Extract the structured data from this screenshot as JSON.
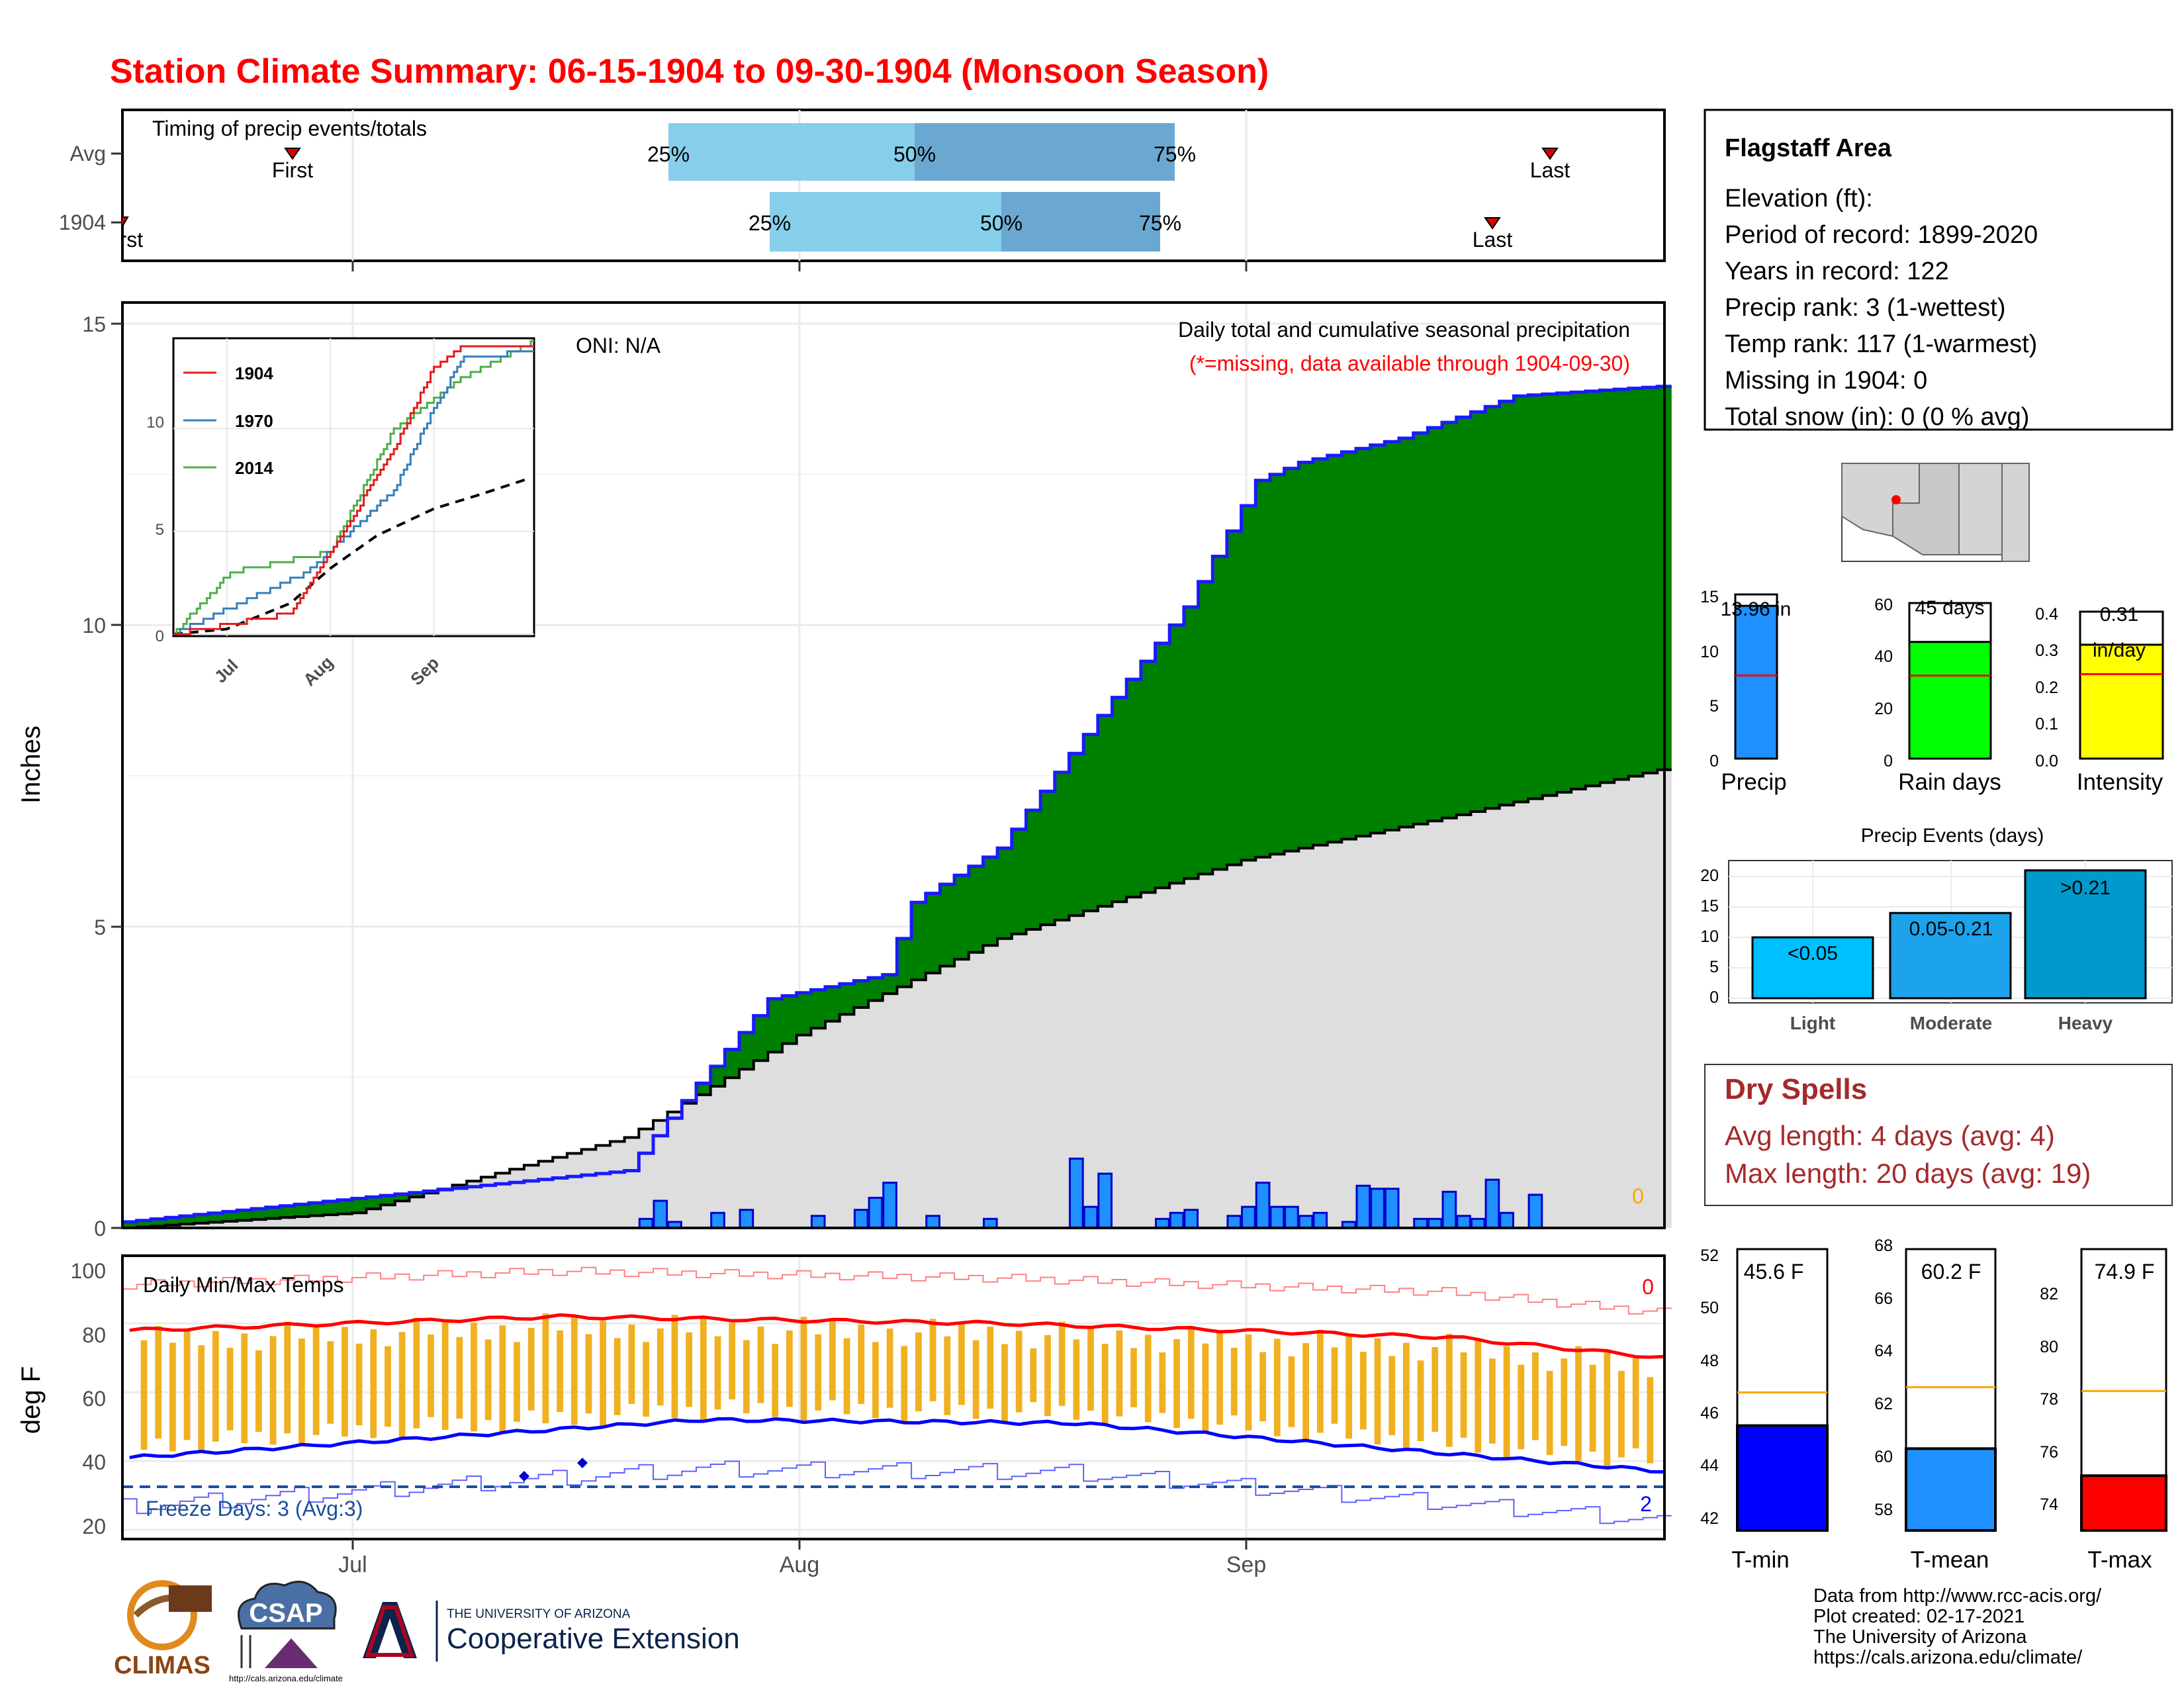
{
  "title": "Station Climate Summary: 06-15-1904 to 09-30-1904 (Monsoon Season)",
  "colors": {
    "title": "#ff0000",
    "accent_blue": "#1a1aff",
    "green": "#008000",
    "brown": "#8b5a00",
    "gray_fill": "#dedede",
    "orange": "#f0b020",
    "dry_spell": "#a52a2a"
  },
  "timing": {
    "label": "Timing of precip events/totals",
    "row_labels": [
      "Avg",
      "1904"
    ],
    "avg": {
      "first_label": "First",
      "last_label": "Last",
      "q25": "25%",
      "q50": "50%",
      "q75": "75%"
    },
    "year": {
      "first_label": "First",
      "last_label": "Last",
      "q25": "25%",
      "q50": "50%",
      "q75": "75%"
    }
  },
  "x_axis": {
    "ticks": [
      "Jul",
      "Aug",
      "Sep"
    ]
  },
  "precip_panel": {
    "ylabel": "Inches",
    "yticks": [
      "0",
      "5",
      "10",
      "15"
    ],
    "oni": "ONI: N/A",
    "subtitle": "Daily total and cumulative seasonal precipitation",
    "missing_note": "(*=missing, data available through 1904-09-30)",
    "missing_count": "0"
  },
  "inset": {
    "legend": [
      "1904",
      "1970",
      "2014"
    ],
    "legend_colors": [
      "#e41a1c",
      "#377eb8",
      "#4daf4a"
    ],
    "yticks": [
      "0",
      "5",
      "10"
    ],
    "xticks": [
      "Jul",
      "Aug",
      "Sep"
    ]
  },
  "temp_panel": {
    "ylabel": "deg F",
    "label": "Daily Min/Max Temps",
    "yticks": [
      "20",
      "40",
      "60",
      "80",
      "100"
    ],
    "freeze_label": "Freeze Days: 3 (Avg:3)",
    "count_top": "0",
    "count_bottom": "2"
  },
  "station_info": {
    "name": "Flagstaff Area",
    "lines": [
      "Elevation (ft):",
      "Period of record: 1899-2020",
      "Years in record: 122",
      "Precip rank: 3 (1-wettest)",
      "Temp rank: 117 (1-warmest)",
      "Missing in 1904: 0",
      "Total snow (in): 0 (0 % avg)"
    ]
  },
  "mini_bars": {
    "precip": {
      "label": "Precip",
      "value_text": "13.96 in",
      "value": 13.96,
      "avg": 7.6,
      "max": 15,
      "ticks": [
        "0",
        "5",
        "10",
        "15"
      ]
    },
    "rain_days": {
      "label": "Rain days",
      "value_text": "45 days",
      "value": 45,
      "avg": 32,
      "max": 60,
      "ticks": [
        "0",
        "20",
        "40",
        "60"
      ]
    },
    "intensity": {
      "label": "Intensity",
      "value_text": "0.31",
      "unit_text": "in/day",
      "value": 0.31,
      "avg": 0.23,
      "max": 0.4,
      "ticks": [
        "0.0",
        "0.1",
        "0.2",
        "0.3",
        "0.4"
      ]
    }
  },
  "precip_events": {
    "title": "Precip Events (days)",
    "categories": [
      "Light",
      "Moderate",
      "Heavy"
    ],
    "ranges": [
      "<0.05",
      "0.05-0.21",
      ">0.21"
    ],
    "values": [
      10,
      14,
      21
    ],
    "yticks": [
      "0",
      "5",
      "10",
      "15",
      "20"
    ]
  },
  "dry_spells": {
    "title": "Dry Spells",
    "avg_length": "Avg length: 4 days (avg: 4)",
    "max_length": "Max length: 20 days (avg: 19)"
  },
  "temp_bars": [
    {
      "label": "T-min",
      "value_text": "45.6 F",
      "value": 45.6,
      "avg": 46.9,
      "ymin": 41.5,
      "ymax": 52.5,
      "ticks": [
        "42",
        "44",
        "46",
        "48",
        "50",
        "52"
      ],
      "color": "#0000ff"
    },
    {
      "label": "T-mean",
      "value_text": "60.2 F",
      "value": 60.2,
      "avg": 62.6,
      "ymin": 57.0,
      "ymax": 68.0,
      "ticks": [
        "58",
        "60",
        "62",
        "64",
        "66",
        "68"
      ],
      "color": "#1e90ff"
    },
    {
      "label": "T-max",
      "value_text": "74.9 F",
      "value": 74.9,
      "avg": 78.3,
      "ymin": 72.7,
      "ymax": 84.0,
      "ticks": [
        "74",
        "76",
        "78",
        "80",
        "82"
      ],
      "color": "#ff0000"
    }
  ],
  "credits": [
    "Data from http://www.rcc-acis.org/",
    "Plot created: 02-17-2021",
    "The University of Arizona",
    "https://cals.arizona.edu/climate/"
  ],
  "logos": {
    "climas": "CLIMAS",
    "csap": "CSAP",
    "csap_url": "http://cals.arizona.edu/climate",
    "ua_line1": "THE UNIVERSITY OF ARIZONA",
    "ua_line2": "Cooperative Extension"
  },
  "chart_data": [
    {
      "type": "area",
      "title": "Daily total and cumulative seasonal precipitation",
      "ylabel": "Inches",
      "ylim": [
        0,
        15
      ],
      "x_range": [
        "1904-06-15",
        "1904-09-30"
      ],
      "cumulative_1904_checkpoints": [
        {
          "date": "1904-06-15",
          "value": 0.1
        },
        {
          "date": "1904-07-20",
          "value": 0.95
        },
        {
          "date": "1904-07-25",
          "value": 2.4
        },
        {
          "date": "1904-07-30",
          "value": 3.8
        },
        {
          "date": "1904-08-07",
          "value": 4.2
        },
        {
          "date": "1904-08-09",
          "value": 5.4
        },
        {
          "date": "1904-08-15",
          "value": 6.3
        },
        {
          "date": "1904-08-22",
          "value": 8.5
        },
        {
          "date": "1904-08-28",
          "value": 10.3
        },
        {
          "date": "1904-09-02",
          "value": 12.4
        },
        {
          "date": "1904-09-05",
          "value": 12.7
        },
        {
          "date": "1904-09-12",
          "value": 13.1
        },
        {
          "date": "1904-09-20",
          "value": 13.8
        },
        {
          "date": "1904-09-30",
          "value": 13.96
        }
      ],
      "cumulative_average_checkpoints": [
        {
          "date": "1904-06-15",
          "value": 0.0
        },
        {
          "date": "1904-07-01",
          "value": 0.25
        },
        {
          "date": "1904-07-20",
          "value": 1.5
        },
        {
          "date": "1904-08-01",
          "value": 3.2
        },
        {
          "date": "1904-08-15",
          "value": 4.8
        },
        {
          "date": "1904-09-01",
          "value": 6.1
        },
        {
          "date": "1904-09-15",
          "value": 6.8
        },
        {
          "date": "1904-09-30",
          "value": 7.6
        }
      ],
      "daily_precip_1904": [
        {
          "date": "1904-07-21",
          "value": 0.15
        },
        {
          "date": "1904-07-22",
          "value": 0.45
        },
        {
          "date": "1904-07-23",
          "value": 0.1
        },
        {
          "date": "1904-07-26",
          "value": 0.25
        },
        {
          "date": "1904-07-28",
          "value": 0.3
        },
        {
          "date": "1904-08-02",
          "value": 0.2
        },
        {
          "date": "1904-08-05",
          "value": 0.3
        },
        {
          "date": "1904-08-06",
          "value": 0.5
        },
        {
          "date": "1904-08-07",
          "value": 0.75
        },
        {
          "date": "1904-08-10",
          "value": 0.2
        },
        {
          "date": "1904-08-14",
          "value": 0.15
        },
        {
          "date": "1904-08-20",
          "value": 1.15
        },
        {
          "date": "1904-08-21",
          "value": 0.35
        },
        {
          "date": "1904-08-22",
          "value": 0.9
        },
        {
          "date": "1904-08-26",
          "value": 0.15
        },
        {
          "date": "1904-08-27",
          "value": 0.25
        },
        {
          "date": "1904-08-28",
          "value": 0.3
        },
        {
          "date": "1904-08-31",
          "value": 0.2
        },
        {
          "date": "1904-09-01",
          "value": 0.35
        },
        {
          "date": "1904-09-02",
          "value": 0.75
        },
        {
          "date": "1904-09-03",
          "value": 0.35
        },
        {
          "date": "1904-09-04",
          "value": 0.35
        },
        {
          "date": "1904-09-05",
          "value": 0.2
        },
        {
          "date": "1904-09-06",
          "value": 0.25
        },
        {
          "date": "1904-09-08",
          "value": 0.1
        },
        {
          "date": "1904-09-09",
          "value": 0.7
        },
        {
          "date": "1904-09-10",
          "value": 0.65
        },
        {
          "date": "1904-09-11",
          "value": 0.65
        },
        {
          "date": "1904-09-13",
          "value": 0.15
        },
        {
          "date": "1904-09-14",
          "value": 0.15
        },
        {
          "date": "1904-09-15",
          "value": 0.6
        },
        {
          "date": "1904-09-16",
          "value": 0.2
        },
        {
          "date": "1904-09-17",
          "value": 0.15
        },
        {
          "date": "1904-09-18",
          "value": 0.8
        },
        {
          "date": "1904-09-19",
          "value": 0.25
        },
        {
          "date": "1904-09-21",
          "value": 0.55
        }
      ]
    },
    {
      "type": "line",
      "title": "Daily Min/Max Temps",
      "ylabel": "deg F",
      "ylim": [
        18,
        102
      ],
      "freeze_threshold": 32,
      "avg_max_checkpoints": [
        {
          "date": "1904-06-15",
          "value": 78
        },
        {
          "date": "1904-07-15",
          "value": 82
        },
        {
          "date": "1904-08-15",
          "value": 80
        },
        {
          "date": "1904-09-15",
          "value": 76
        },
        {
          "date": "1904-09-30",
          "value": 70
        }
      ],
      "avg_min_checkpoints": [
        {
          "date": "1904-06-15",
          "value": 41
        },
        {
          "date": "1904-07-25",
          "value": 52
        },
        {
          "date": "1904-08-20",
          "value": 51
        },
        {
          "date": "1904-09-30",
          "value": 37
        }
      ]
    },
    {
      "type": "line",
      "title": "inset cumulative precipitation",
      "series": [
        {
          "name": "1904",
          "checkpoints": [
            {
              "date": "06-15",
              "value": 0
            },
            {
              "date": "07-20",
              "value": 1
            },
            {
              "date": "08-01",
              "value": 4
            },
            {
              "date": "08-20",
              "value": 9
            },
            {
              "date": "09-01",
              "value": 13
            },
            {
              "date": "09-10",
              "value": 14
            },
            {
              "date": "09-30",
              "value": 14
            }
          ]
        },
        {
          "name": "1970",
          "checkpoints": [
            {
              "date": "06-15",
              "value": 0
            },
            {
              "date": "07-25",
              "value": 3
            },
            {
              "date": "08-20",
              "value": 7
            },
            {
              "date": "09-01",
              "value": 11
            },
            {
              "date": "09-10",
              "value": 13.5
            },
            {
              "date": "09-30",
              "value": 13.7
            }
          ]
        },
        {
          "name": "2014",
          "checkpoints": [
            {
              "date": "06-15",
              "value": 0
            },
            {
              "date": "07-02",
              "value": 3
            },
            {
              "date": "08-01",
              "value": 4
            },
            {
              "date": "08-20",
              "value": 10
            },
            {
              "date": "09-10",
              "value": 12.5
            },
            {
              "date": "09-30",
              "value": 14.2
            }
          ]
        }
      ],
      "ylim": [
        0,
        15
      ]
    }
  ]
}
